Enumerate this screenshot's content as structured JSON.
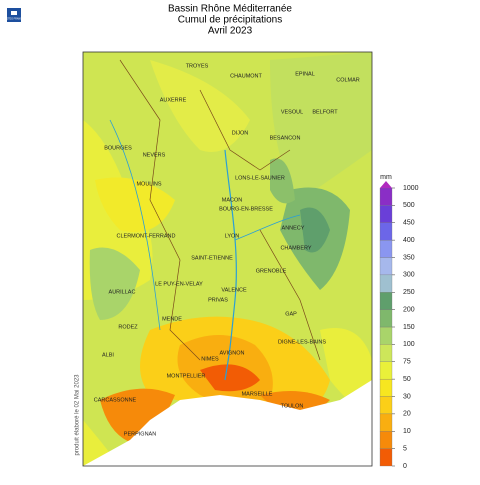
{
  "header": {
    "title": "Bassin Rhône Méditerranée",
    "subtitle": "Cumul de précipitations",
    "period": "Avril 2023"
  },
  "logo": {
    "text": "METEO FRANCE"
  },
  "side_note": "produit élaboré le 02 Mai 2023",
  "legend": {
    "unit": "mm",
    "steps": [
      {
        "value": 0,
        "color": "#f25c05"
      },
      {
        "value": 5,
        "color": "#f68a0a"
      },
      {
        "value": 10,
        "color": "#f9ae10"
      },
      {
        "value": 20,
        "color": "#fbcf18"
      },
      {
        "value": 30,
        "color": "#f7e620"
      },
      {
        "value": 50,
        "color": "#e9f03a"
      },
      {
        "value": 75,
        "color": "#cde65a"
      },
      {
        "value": 100,
        "color": "#a9d46a"
      },
      {
        "value": 150,
        "color": "#7fb86c"
      },
      {
        "value": 200,
        "color": "#5f9f6c"
      },
      {
        "value": 250,
        "color": "#9fc0d0"
      },
      {
        "value": 300,
        "color": "#a6b8ec"
      },
      {
        "value": 350,
        "color": "#8a96f0"
      },
      {
        "value": 400,
        "color": "#6c66e8"
      },
      {
        "value": 450,
        "color": "#6a3fd8"
      },
      {
        "value": 500,
        "color": "#8a2ec6"
      },
      {
        "value": 1000,
        "color": "#b02abf"
      }
    ]
  },
  "cities": [
    "TROYES",
    "CHAUMONT",
    "EPINAL",
    "COLMAR",
    "AUXERRE",
    "VESOUL",
    "BELFORT",
    "DIJON",
    "BESANCON",
    "BOURGES",
    "NEVERS",
    "MOULINS",
    "LONS-LE-SAUNIER",
    "MACON",
    "BOURG-EN-BRESSE",
    "ANNECY",
    "CHAMBERY",
    "CLERMONT-FERRAND",
    "LYON",
    "SAINT-ETIENNE",
    "GRENOBLE",
    "AURILLAC",
    "LE PUY-EN-VELAY",
    "VALENCE",
    "PRIVAS",
    "GAP",
    "RODEZ",
    "MENDE",
    "DIGNE-LES-BAINS",
    "ALBI",
    "NIMES",
    "AVIGNON",
    "MONTPELLIER",
    "MARSEILLE",
    "TOULON",
    "CARCASSONNE",
    "PERPIGNAN"
  ]
}
